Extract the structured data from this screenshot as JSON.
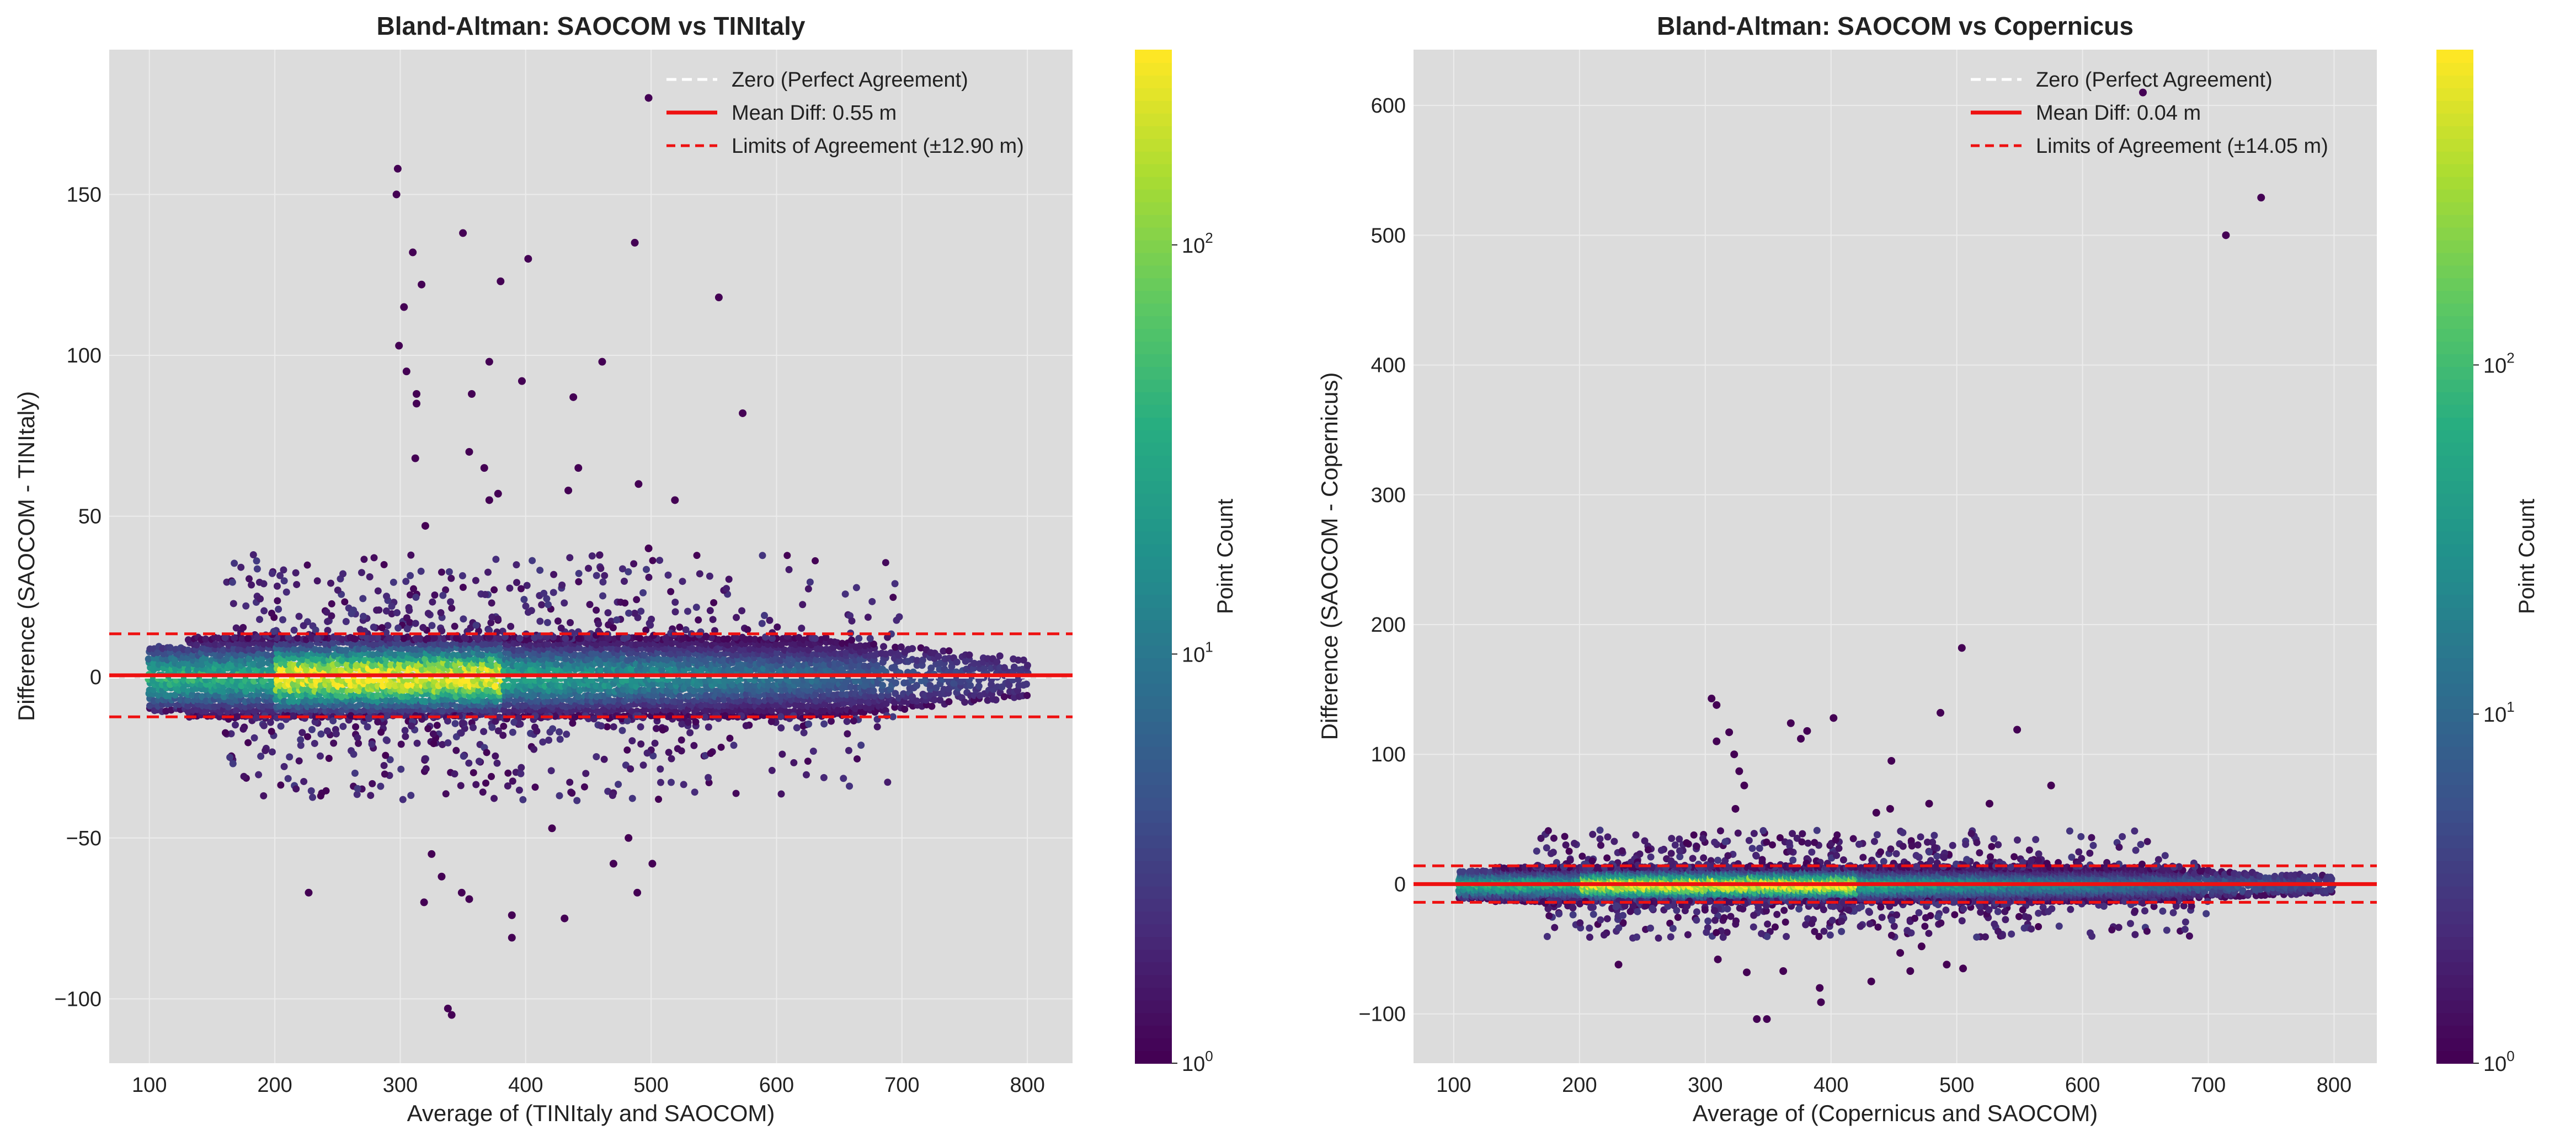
{
  "chart_data": [
    {
      "type": "hexbin-scatter",
      "title": "Bland-Altman: SAOCOM vs TINItaly",
      "xlabel": "Average of (TINItaly and SAOCOM)",
      "ylabel": "Difference (SAOCOM - TINItaly)",
      "xlim": [
        68,
        836
      ],
      "ylim": [
        -120,
        195
      ],
      "xticks": [
        {
          "v": 100,
          "label": "100"
        },
        {
          "v": 200,
          "label": "200"
        },
        {
          "v": 300,
          "label": "300"
        },
        {
          "v": 400,
          "label": "400"
        },
        {
          "v": 500,
          "label": "500"
        },
        {
          "v": 600,
          "label": "600"
        },
        {
          "v": 700,
          "label": "700"
        },
        {
          "v": 800,
          "label": "800"
        }
      ],
      "yticks": [
        {
          "v": -100,
          "label": "−100"
        },
        {
          "v": -50,
          "label": "−50"
        },
        {
          "v": 0,
          "label": "0"
        },
        {
          "v": 50,
          "label": "50"
        },
        {
          "v": 100,
          "label": "100"
        },
        {
          "v": 150,
          "label": "150"
        }
      ],
      "grid": true,
      "legend_position": "top-right",
      "reference_lines": {
        "zero": 0,
        "mean": 0.55,
        "loa_upper": 13.45,
        "loa_lower": -12.35
      },
      "legend": [
        {
          "label": "Zero (Perfect Agreement)",
          "style": "white-dashed"
        },
        {
          "label": "Mean Diff: 0.55 m",
          "style": "red-solid"
        },
        {
          "label": "Limits of Agreement (±12.90 m)",
          "style": "red-dashed"
        }
      ],
      "band": {
        "x_start": 100,
        "x_end": 800,
        "half_width": 12,
        "dense_x": [
          200,
          380
        ]
      },
      "outliers": [
        [
          298,
          158
        ],
        [
          297,
          150
        ],
        [
          310,
          132
        ],
        [
          317,
          122
        ],
        [
          303,
          115
        ],
        [
          299,
          103
        ],
        [
          305,
          95
        ],
        [
          313,
          88
        ],
        [
          313,
          85
        ],
        [
          350,
          138
        ],
        [
          380,
          123
        ],
        [
          402,
          130
        ],
        [
          371,
          98
        ],
        [
          397,
          92
        ],
        [
          357,
          88
        ],
        [
          312,
          68
        ],
        [
          355,
          70
        ],
        [
          367,
          65
        ],
        [
          371,
          55
        ],
        [
          378,
          57
        ],
        [
          438,
          87
        ],
        [
          461,
          98
        ],
        [
          487,
          135
        ],
        [
          498,
          180
        ],
        [
          554,
          118
        ],
        [
          573,
          82
        ],
        [
          519,
          55
        ],
        [
          490,
          60
        ],
        [
          434,
          58
        ],
        [
          442,
          65
        ],
        [
          320,
          47
        ],
        [
          498,
          40
        ],
        [
          227,
          -67
        ],
        [
          325,
          -55
        ],
        [
          333,
          -62
        ],
        [
          319,
          -70
        ],
        [
          338,
          -103
        ],
        [
          341,
          -105
        ],
        [
          389,
          -74
        ],
        [
          389,
          -81
        ],
        [
          431,
          -75
        ],
        [
          421,
          -47
        ],
        [
          470,
          -58
        ],
        [
          489,
          -67
        ],
        [
          501,
          -58
        ],
        [
          482,
          -50
        ],
        [
          355,
          -69
        ],
        [
          349,
          -67
        ]
      ],
      "colorbar": {
        "label": "Point Count",
        "scale": "log",
        "min": 1,
        "max": 300,
        "ticks": [
          {
            "v": 1,
            "label": "10",
            "exp": "0"
          },
          {
            "v": 10,
            "label": "10",
            "exp": "1"
          },
          {
            "v": 100,
            "label": "10",
            "exp": "2"
          }
        ]
      }
    },
    {
      "type": "hexbin-scatter",
      "title": "Bland-Altman: SAOCOM vs Copernicus",
      "xlabel": "Average of (Copernicus and SAOCOM)",
      "ylabel": "Difference (SAOCOM - Copernicus)",
      "xlim": [
        68,
        834
      ],
      "ylim": [
        -138,
        643
      ],
      "xticks": [
        {
          "v": 100,
          "label": "100"
        },
        {
          "v": 200,
          "label": "200"
        },
        {
          "v": 300,
          "label": "300"
        },
        {
          "v": 400,
          "label": "400"
        },
        {
          "v": 500,
          "label": "500"
        },
        {
          "v": 600,
          "label": "600"
        },
        {
          "v": 700,
          "label": "700"
        },
        {
          "v": 800,
          "label": "800"
        }
      ],
      "yticks": [
        {
          "v": -100,
          "label": "−100"
        },
        {
          "v": 0,
          "label": "0"
        },
        {
          "v": 100,
          "label": "100"
        },
        {
          "v": 200,
          "label": "200"
        },
        {
          "v": 300,
          "label": "300"
        },
        {
          "v": 400,
          "label": "400"
        },
        {
          "v": 500,
          "label": "500"
        },
        {
          "v": 600,
          "label": "600"
        }
      ],
      "grid": true,
      "legend_position": "top-right",
      "reference_lines": {
        "zero": 0,
        "mean": 0.04,
        "loa_upper": 14.09,
        "loa_lower": -14.01
      },
      "legend": [
        {
          "label": "Zero (Perfect Agreement)",
          "style": "white-dashed"
        },
        {
          "label": "Mean Diff: 0.04 m",
          "style": "red-solid"
        },
        {
          "label": "Limits of Agreement (±14.05 m)",
          "style": "red-dashed"
        }
      ],
      "band": {
        "x_start": 105,
        "x_end": 800,
        "half_width": 13,
        "dense_x": [
          200,
          420
        ]
      },
      "outliers": [
        [
          648,
          610
        ],
        [
          742,
          529
        ],
        [
          714,
          500
        ],
        [
          305,
          143
        ],
        [
          309,
          138
        ],
        [
          309,
          110
        ],
        [
          319,
          117
        ],
        [
          323,
          100
        ],
        [
          327,
          87
        ],
        [
          331,
          76
        ],
        [
          324,
          58
        ],
        [
          368,
          124
        ],
        [
          381,
          118
        ],
        [
          402,
          128
        ],
        [
          376,
          112
        ],
        [
          448,
          95
        ],
        [
          487,
          132
        ],
        [
          504,
          182
        ],
        [
          548,
          119
        ],
        [
          575,
          76
        ],
        [
          526,
          62
        ],
        [
          478,
          62
        ],
        [
          436,
          55
        ],
        [
          447,
          58
        ],
        [
          231,
          -62
        ],
        [
          333,
          -68
        ],
        [
          341,
          -104
        ],
        [
          349,
          -104
        ],
        [
          392,
          -91
        ],
        [
          391,
          -80
        ],
        [
          432,
          -75
        ],
        [
          463,
          -67
        ],
        [
          492,
          -62
        ],
        [
          505,
          -65
        ],
        [
          472,
          -48
        ],
        [
          455,
          -53
        ],
        [
          362,
          -67
        ],
        [
          310,
          -58
        ]
      ],
      "colorbar": {
        "label": "Point Count",
        "scale": "log",
        "min": 1,
        "max": 800,
        "ticks": [
          {
            "v": 1,
            "label": "10",
            "exp": "0"
          },
          {
            "v": 10,
            "label": "10",
            "exp": "1"
          },
          {
            "v": 100,
            "label": "10",
            "exp": "2"
          }
        ]
      }
    }
  ]
}
